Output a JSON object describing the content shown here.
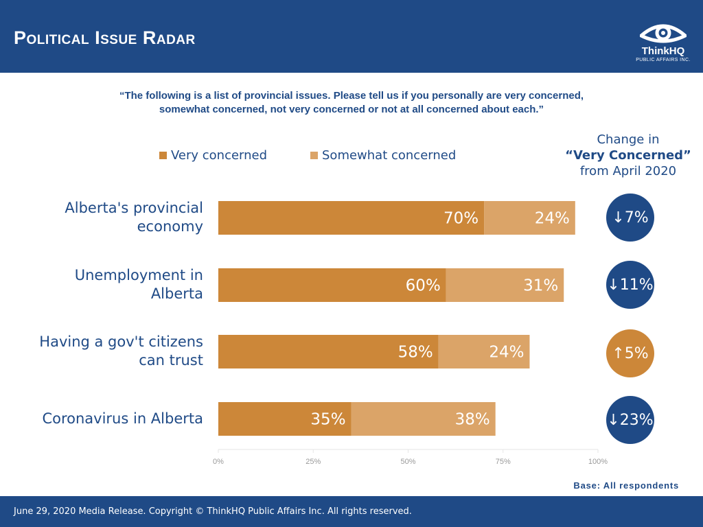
{
  "header": {
    "title": "Political Issue Radar"
  },
  "logo": {
    "name": "ThinkHQ",
    "subtitle": "PUBLIC AFFAIRS INC."
  },
  "question": {
    "line1": "“The following is a list of provincial issues. Please tell us if you personally are very concerned,",
    "line2": "somewhat concerned, not very concerned or not at all concerned about each.”"
  },
  "change_header": {
    "line1": "Change in",
    "line2": "“Very Concerned”",
    "line3": "from April 2020"
  },
  "chart_data": {
    "type": "bar",
    "orientation": "horizontal",
    "stacked": true,
    "categories": [
      [
        "Alberta's provincial",
        "economy"
      ],
      [
        "Unemployment in",
        "Alberta"
      ],
      [
        "Having a gov't citizens",
        "can trust"
      ],
      [
        "Coronavirus in Alberta"
      ]
    ],
    "series": [
      {
        "name": "Very concerned",
        "values": [
          70,
          60,
          58,
          35
        ],
        "labels": [
          "70%",
          "60%",
          "58%",
          "35%"
        ],
        "color": "#cc8739"
      },
      {
        "name": "Somewhat concerned",
        "values": [
          24,
          31,
          24,
          38
        ],
        "labels": [
          "24%",
          "31%",
          "24%",
          "38%"
        ],
        "color": "#dba468"
      }
    ],
    "xlim": [
      0,
      100
    ],
    "x_ticks": [
      "0%",
      "25%",
      "50%",
      "75%",
      "100%"
    ],
    "grid": false,
    "legend_position": "top"
  },
  "changes": [
    {
      "direction": "down",
      "arrow": "↓",
      "value": "7%",
      "color": "#1f4a86"
    },
    {
      "direction": "down",
      "arrow": "↓",
      "value": "11%",
      "color": "#1f4a86"
    },
    {
      "direction": "up",
      "arrow": "↑",
      "value": "5%",
      "color": "#cc8739"
    },
    {
      "direction": "down",
      "arrow": "↓",
      "value": "23%",
      "color": "#1f4a86"
    }
  ],
  "base": "Base: All respondents",
  "footer": "June 29, 2020 Media Release. Copyright © ThinkHQ Public Affairs Inc. All rights reserved."
}
